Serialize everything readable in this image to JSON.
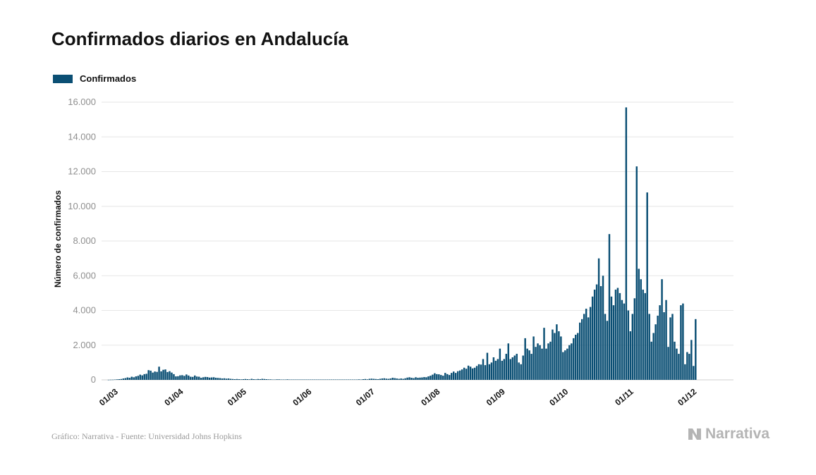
{
  "chart_data": {
    "type": "bar",
    "title": "Confirmados diarios en Andalucía",
    "ylabel": "Número de confirmados",
    "xlabel": "",
    "legend": {
      "placement": "top-left",
      "entries": [
        "Confirmados"
      ]
    },
    "grid": true,
    "ylim": [
      0,
      16000
    ],
    "yticks": [
      0,
      2000,
      4000,
      6000,
      8000,
      10000,
      12000,
      14000,
      16000
    ],
    "ytick_labels": [
      "0",
      "2.000",
      "4.000",
      "6.000",
      "8.000",
      "10.000",
      "12.000",
      "14.000",
      "16.000"
    ],
    "xticks": [
      {
        "label": "01/03",
        "day": 1
      },
      {
        "label": "01/04",
        "day": 32
      },
      {
        "label": "01/05",
        "day": 62
      },
      {
        "label": "01/06",
        "day": 93
      },
      {
        "label": "01/07",
        "day": 123
      },
      {
        "label": "01/08",
        "day": 154
      },
      {
        "label": "01/09",
        "day": 185
      },
      {
        "label": "01/10",
        "day": 215
      },
      {
        "label": "01/11",
        "day": 246
      },
      {
        "label": "01/12",
        "day": 276
      }
    ],
    "x_start_date": "01/03",
    "series": [
      {
        "name": "Confirmados",
        "color": "#0b4f74",
        "values": [
          0,
          0,
          5,
          10,
          12,
          20,
          30,
          40,
          50,
          80,
          100,
          140,
          120,
          180,
          150,
          200,
          230,
          300,
          260,
          330,
          350,
          560,
          530,
          420,
          480,
          460,
          760,
          490,
          580,
          600,
          450,
          500,
          420,
          330,
          200,
          210,
          260,
          270,
          230,
          310,
          250,
          180,
          170,
          250,
          190,
          180,
          120,
          150,
          170,
          160,
          130,
          140,
          150,
          120,
          110,
          100,
          80,
          90,
          70,
          80,
          60,
          50,
          40,
          50,
          40,
          30,
          40,
          50,
          40,
          30,
          60,
          40,
          30,
          50,
          40,
          60,
          50,
          40,
          30,
          30,
          20,
          20,
          30,
          30,
          20,
          20,
          20,
          30,
          20,
          20,
          20,
          20,
          20,
          20,
          20,
          20,
          20,
          20,
          20,
          20,
          20,
          20,
          20,
          20,
          20,
          20,
          20,
          20,
          20,
          20,
          20,
          20,
          20,
          20,
          20,
          20,
          20,
          20,
          20,
          20,
          20,
          30,
          20,
          40,
          50,
          30,
          60,
          70,
          60,
          50,
          40,
          60,
          80,
          90,
          70,
          60,
          80,
          120,
          100,
          80,
          60,
          80,
          60,
          90,
          130,
          150,
          120,
          100,
          150,
          120,
          130,
          140,
          160,
          150,
          200,
          240,
          300,
          380,
          330,
          320,
          280,
          240,
          400,
          330,
          280,
          400,
          480,
          400,
          500,
          540,
          600,
          700,
          640,
          820,
          760,
          660,
          700,
          800,
          900,
          880,
          1200,
          850,
          1560,
          900,
          1000,
          1300,
          1100,
          1200,
          1800,
          1100,
          1200,
          1500,
          2100,
          1200,
          1300,
          1400,
          1500,
          1000,
          900,
          1400,
          2400,
          1800,
          1700,
          1500,
          2500,
          1900,
          2100,
          2000,
          1800,
          3000,
          1800,
          2100,
          2200,
          2900,
          2700,
          3200,
          2800,
          2500,
          1600,
          1700,
          1800,
          2000,
          2100,
          2400,
          2600,
          2700,
          3300,
          3500,
          3800,
          4100,
          3600,
          4200,
          4800,
          5200,
          5500,
          7000,
          5400,
          6000,
          3800,
          3400,
          8400,
          4800,
          4300,
          5200,
          5300,
          5000,
          4600,
          4400,
          15700,
          4000,
          2800,
          3800,
          4700,
          12300,
          6400,
          5800,
          5200,
          5000,
          10800,
          3800,
          2200,
          2700,
          3200,
          3700,
          4300,
          5800,
          3900,
          4600,
          1900,
          3600,
          3800,
          2200,
          1800,
          1500,
          4300,
          4400,
          900,
          1600,
          1500,
          2300,
          800,
          3500
        ]
      }
    ]
  },
  "footer": {
    "source": "Gráfico: Narrativa - Fuente: Universidad Johns Hopkins",
    "brand": "Narrativa"
  },
  "colors": {
    "bar": "#0b4f74",
    "grid": "#e6e6e6",
    "brand": "#b4b4b4"
  }
}
